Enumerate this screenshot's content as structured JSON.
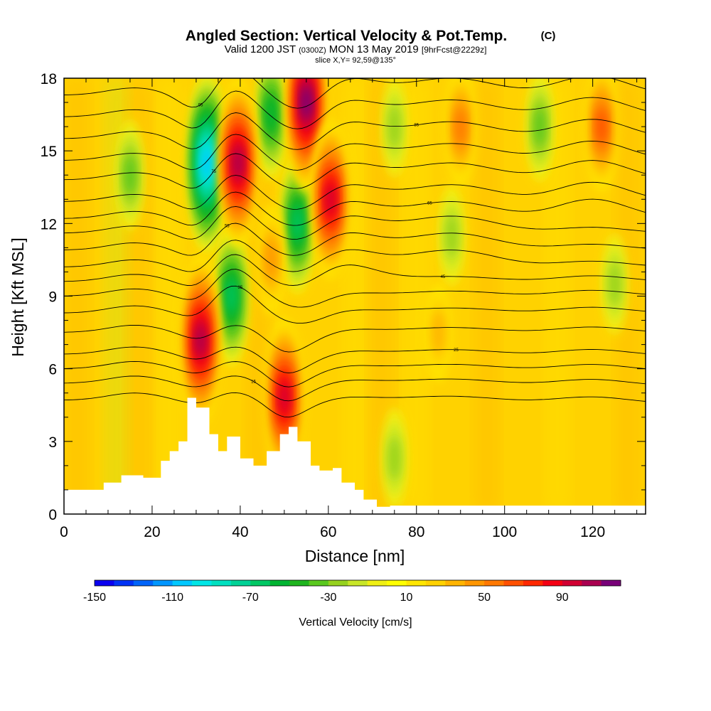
{
  "chart_data": {
    "type": "heatmap",
    "title": "Angled Section: Vertical Velocity & Pot.Temp.",
    "title_suffix": "(C)",
    "subtitle": {
      "valid": "Valid 1200 JST",
      "utc": "(0300Z)",
      "date": "MON 13 May 2019",
      "forecast": "[9hrFcst@2229z]"
    },
    "slice_label": "slice X,Y= 92,59@135°",
    "xlabel": "Distance [nm]",
    "ylabel": "Height [Kft MSL]",
    "xlim": [
      0,
      132
    ],
    "ylim": [
      0,
      18
    ],
    "x_ticks": [
      0,
      20,
      40,
      60,
      80,
      100,
      120
    ],
    "y_ticks": [
      0,
      3,
      6,
      9,
      12,
      15,
      18
    ],
    "colorbar": {
      "label": "Vertical Velocity [cm/s]",
      "tick_labels": [
        -150,
        -110,
        -70,
        -30,
        10,
        50,
        90
      ],
      "range": [
        -150,
        110
      ],
      "step": 10,
      "colors": [
        "#0a00f0",
        "#0032f5",
        "#0064fa",
        "#0096ff",
        "#00c8ff",
        "#00e6e6",
        "#00e0c0",
        "#00d296",
        "#00c864",
        "#00b432",
        "#1eb41e",
        "#5ac81e",
        "#96d21e",
        "#c8e628",
        "#f0f014",
        "#ffff00",
        "#ffe600",
        "#ffd200",
        "#ffb400",
        "#ff9600",
        "#ff7800",
        "#ff5000",
        "#ff2800",
        "#f50014",
        "#d20032",
        "#aa0050",
        "#780078"
      ]
    },
    "updraft_cores": [
      {
        "x": 31,
        "z": 7.2,
        "w": 95
      },
      {
        "x": 39.5,
        "z": 14.5,
        "w": 100
      },
      {
        "x": 50,
        "z": 4.8,
        "w": 90
      },
      {
        "x": 55,
        "z": 17,
        "w": 110
      },
      {
        "x": 60.5,
        "z": 13,
        "w": 85
      },
      {
        "x": 47,
        "z": 10.5,
        "w": 40
      },
      {
        "x": 90,
        "z": 16,
        "w": 45
      },
      {
        "x": 122,
        "z": 16,
        "w": 55
      },
      {
        "x": 85,
        "z": 7.5,
        "w": 25
      }
    ],
    "downdraft_cores": [
      {
        "x": 32.5,
        "z": 14.5,
        "w": -110
      },
      {
        "x": 38,
        "z": 9,
        "w": -70
      },
      {
        "x": 47,
        "z": 16.5,
        "w": -60
      },
      {
        "x": 53,
        "z": 12,
        "w": -70
      },
      {
        "x": 15,
        "z": 14,
        "w": -35
      },
      {
        "x": 75,
        "z": 16,
        "w": -30
      },
      {
        "x": 108,
        "z": 16,
        "w": -35
      },
      {
        "x": 125,
        "z": 9.5,
        "w": -30
      },
      {
        "x": 88,
        "z": 11.5,
        "w": -25
      },
      {
        "x": 75,
        "z": 2.3,
        "w": -25
      }
    ],
    "terrain": [
      {
        "x": 0,
        "z": 1.0
      },
      {
        "x": 5,
        "z": 1.0
      },
      {
        "x": 9,
        "z": 1.3
      },
      {
        "x": 13,
        "z": 1.6
      },
      {
        "x": 18,
        "z": 1.5
      },
      {
        "x": 22,
        "z": 2.2
      },
      {
        "x": 24,
        "z": 2.6
      },
      {
        "x": 26,
        "z": 3.0
      },
      {
        "x": 28,
        "z": 4.8
      },
      {
        "x": 30,
        "z": 4.4
      },
      {
        "x": 33,
        "z": 3.3
      },
      {
        "x": 35,
        "z": 2.6
      },
      {
        "x": 37,
        "z": 3.2
      },
      {
        "x": 40,
        "z": 2.3
      },
      {
        "x": 43,
        "z": 2.0
      },
      {
        "x": 46,
        "z": 2.6
      },
      {
        "x": 49,
        "z": 3.3
      },
      {
        "x": 51,
        "z": 3.6
      },
      {
        "x": 53,
        "z": 3.0
      },
      {
        "x": 56,
        "z": 2.0
      },
      {
        "x": 58,
        "z": 1.8
      },
      {
        "x": 61,
        "z": 1.9
      },
      {
        "x": 63,
        "z": 1.3
      },
      {
        "x": 66,
        "z": 1.0
      },
      {
        "x": 68,
        "z": 0.6
      },
      {
        "x": 71,
        "z": 0.3
      },
      {
        "x": 74,
        "z": 0.35
      },
      {
        "x": 132,
        "z": 0.35
      }
    ],
    "isentropes": [
      {
        "theta": 10,
        "z0": 4.7
      },
      {
        "theta": 15,
        "z0": 5.4
      },
      {
        "theta": 20,
        "z0": 6.0
      },
      {
        "theta": 25,
        "z0": 6.6
      },
      {
        "theta": 30,
        "z0": 7.5
      },
      {
        "theta": 35,
        "z0": 8.3
      },
      {
        "theta": 40,
        "z0": 9.0
      },
      {
        "theta": 45,
        "z0": 9.6
      },
      {
        "theta": 50,
        "z0": 10.2
      },
      {
        "theta": 55,
        "z0": 10.9
      },
      {
        "theta": 60,
        "z0": 11.6
      },
      {
        "theta": 65,
        "z0": 12.2
      },
      {
        "theta": 70,
        "z0": 12.9
      },
      {
        "theta": 75,
        "z0": 13.8
      },
      {
        "theta": 80,
        "z0": 14.6
      },
      {
        "theta": 85,
        "z0": 15.5
      },
      {
        "theta": 90,
        "z0": 16.4
      },
      {
        "theta": 95,
        "z0": 17.3
      }
    ]
  }
}
